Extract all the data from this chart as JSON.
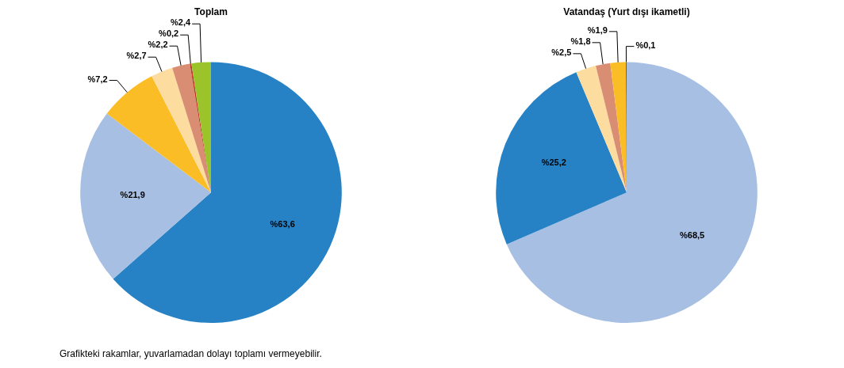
{
  "chart_data": [
    {
      "type": "pie",
      "title": "Toplam",
      "categories": [
        null,
        null,
        null,
        null,
        null,
        null,
        null
      ],
      "values": [
        63.6,
        21.9,
        7.2,
        2.7,
        2.2,
        0.2,
        2.4
      ],
      "value_labels": [
        "%63,6",
        "%21,9",
        "%7,2",
        "%2,7",
        "%2,2",
        "%0,2",
        "%2,4"
      ],
      "colors": [
        "#2682c4",
        "#a6bfe3",
        "#fbbd26",
        "#fddc9f",
        "#d98e74",
        "#c0392b",
        "#9bc32a"
      ],
      "annotations": [
        "Grafikteki rakamlar, yuvarlamadan dolayı toplamı vermeyebilir."
      ]
    },
    {
      "type": "pie",
      "title": "Vatandaş (Yurt dışı ikametli)",
      "categories": [
        null,
        null,
        null,
        null,
        null,
        null
      ],
      "values": [
        68.5,
        25.2,
        2.5,
        1.8,
        1.9,
        0.1
      ],
      "value_labels": [
        "%68,5",
        "%25,2",
        "%2,5",
        "%1,8",
        "%1,9",
        "%0,1"
      ],
      "colors": [
        "#a6bfe3",
        "#2682c4",
        "#fddc9f",
        "#d98e74",
        "#fbbd26",
        "#c0392b"
      ]
    }
  ]
}
